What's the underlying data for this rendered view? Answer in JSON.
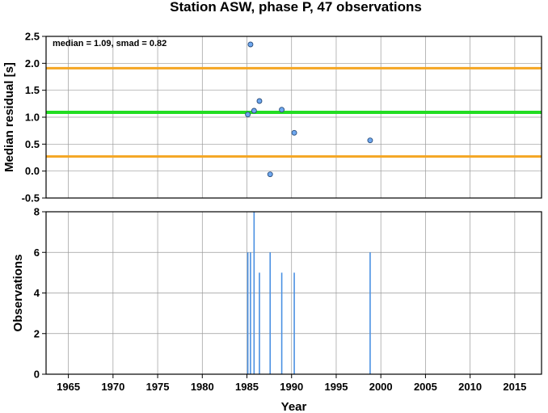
{
  "chart_data": [
    {
      "type": "scatter",
      "title": "Station ASW, phase P, 47 observations",
      "ylabel": "Median residual [s]",
      "xlabel": "",
      "annotation": "median = 1.09, smad = 0.82",
      "xlim": [
        1962.5,
        2018
      ],
      "ylim": [
        -0.5,
        2.5
      ],
      "xticks": [
        1965,
        1970,
        1975,
        1980,
        1985,
        1990,
        1995,
        2000,
        2005,
        2010,
        2015
      ],
      "yticks": [
        -0.5,
        0.0,
        0.5,
        1.0,
        1.5,
        2.0,
        2.5
      ],
      "ytick_labels": [
        "-0.5",
        "0.0",
        "0.5",
        "1.0",
        "1.5",
        "2.0",
        "2.5"
      ],
      "grid": true,
      "hlines": [
        {
          "y": 1.09,
          "color": "#22dd22"
        },
        {
          "y": 1.91,
          "color": "#f5a623"
        },
        {
          "y": 0.27,
          "color": "#f5a623"
        }
      ],
      "points": [
        {
          "x": 1985.1,
          "y": 1.05
        },
        {
          "x": 1985.4,
          "y": 2.35
        },
        {
          "x": 1985.8,
          "y": 1.12
        },
        {
          "x": 1986.4,
          "y": 1.3
        },
        {
          "x": 1987.6,
          "y": -0.06
        },
        {
          "x": 1988.9,
          "y": 1.14
        },
        {
          "x": 1990.3,
          "y": 0.71
        },
        {
          "x": 1998.8,
          "y": 0.57
        }
      ],
      "point_color": "#6fa8f0"
    },
    {
      "type": "bar",
      "ylabel": "Observations",
      "xlabel": "Year",
      "xlim": [
        1962.5,
        2018
      ],
      "ylim": [
        0,
        8
      ],
      "xticks": [
        1965,
        1970,
        1975,
        1980,
        1985,
        1990,
        1995,
        2000,
        2005,
        2010,
        2015
      ],
      "yticks": [
        0,
        2,
        4,
        6,
        8
      ],
      "grid": true,
      "x": [
        1985.1,
        1985.4,
        1985.8,
        1986.4,
        1987.6,
        1988.9,
        1990.3,
        1998.8
      ],
      "values": [
        6,
        6,
        8,
        5,
        6,
        5,
        5,
        6
      ],
      "bar_color": "#4a90e2"
    }
  ]
}
